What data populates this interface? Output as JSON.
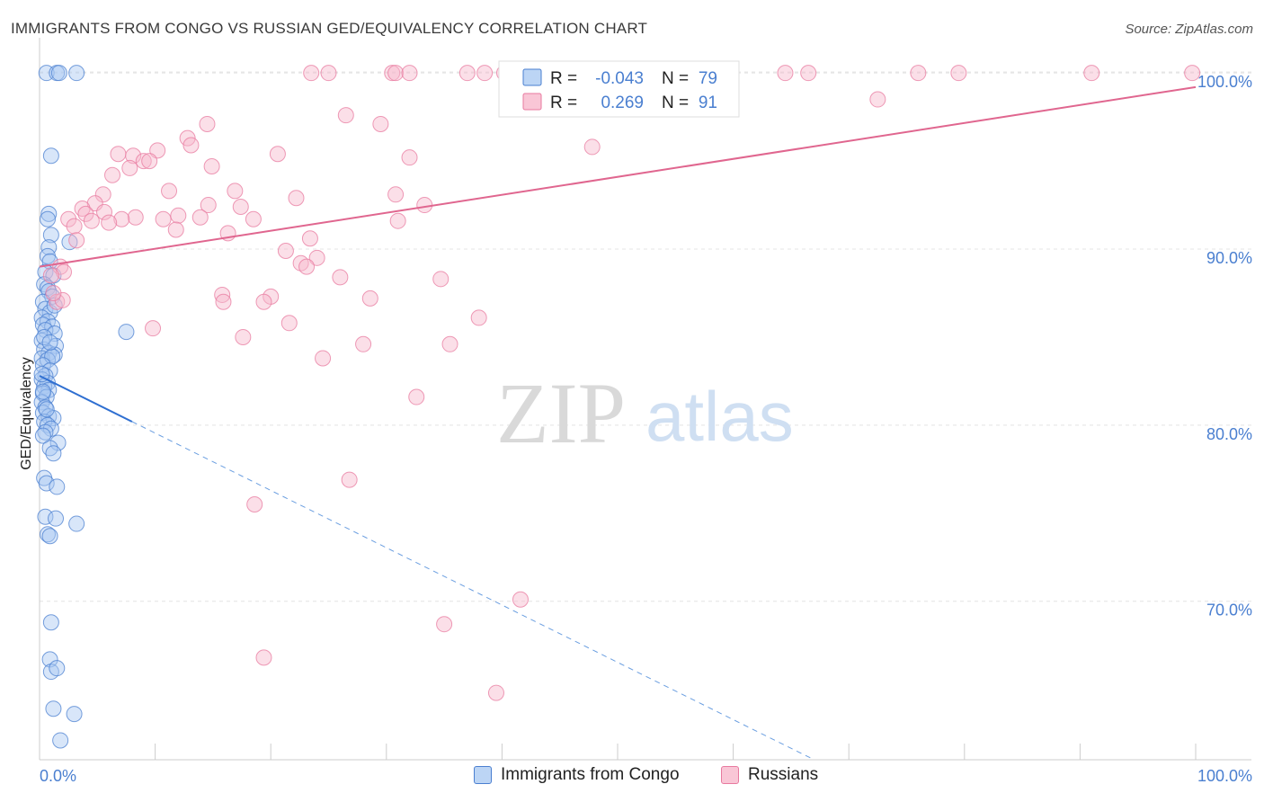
{
  "header": {
    "title": "IMMIGRANTS FROM CONGO VS RUSSIAN GED/EQUIVALENCY CORRELATION CHART",
    "source": "Source: ZipAtlas.com"
  },
  "watermark": {
    "zip": "ZIP",
    "atlas": "atlas"
  },
  "legend_top": {
    "rows": [
      {
        "r_label": "R =",
        "r_value": "-0.043",
        "n_label": "N =",
        "n_value": "79",
        "color": "#4a7fd0"
      },
      {
        "r_label": "R =",
        "r_value": "0.269",
        "n_label": "N =",
        "n_value": "91",
        "color": "#e8799f"
      }
    ]
  },
  "legend_bottom": {
    "items": [
      {
        "label": "Immigrants from Congo"
      },
      {
        "label": "Russians"
      }
    ]
  },
  "chart_data": {
    "type": "scatter",
    "xlabel": "",
    "ylabel": "GED/Equivalency",
    "xlim": [
      0,
      100
    ],
    "ylim": [
      61,
      102
    ],
    "x_tick_labels": [
      "0.0%",
      "100.0%"
    ],
    "y_ticks": [
      70,
      80,
      90,
      100
    ],
    "y_tick_labels": [
      "70.0%",
      "80.0%",
      "90.0%",
      "100.0%"
    ],
    "grid": true,
    "series": [
      {
        "name": "Immigrants from Congo",
        "color": "#4a7fd0",
        "fill": "#a9c8f2",
        "trend": {
          "x0": 0,
          "y0": 82.8,
          "x1": 8.0,
          "y1": 80.2,
          "dash_to_x": 67,
          "dash_to_y": 61
        },
        "points": [
          [
            0.6,
            100
          ],
          [
            1.5,
            100
          ],
          [
            1.7,
            100
          ],
          [
            3.2,
            100
          ],
          [
            1.0,
            95.3
          ],
          [
            0.8,
            92.0
          ],
          [
            0.7,
            91.7
          ],
          [
            1.0,
            90.8
          ],
          [
            2.6,
            90.4
          ],
          [
            0.8,
            90.1
          ],
          [
            0.7,
            89.6
          ],
          [
            0.9,
            89.3
          ],
          [
            0.5,
            88.7
          ],
          [
            1.2,
            88.5
          ],
          [
            0.4,
            88.0
          ],
          [
            0.7,
            87.8
          ],
          [
            0.8,
            87.6
          ],
          [
            1.1,
            87.3
          ],
          [
            0.3,
            87.0
          ],
          [
            0.5,
            86.6
          ],
          [
            0.9,
            86.4
          ],
          [
            0.2,
            86.1
          ],
          [
            0.7,
            85.9
          ],
          [
            0.3,
            85.7
          ],
          [
            1.1,
            85.6
          ],
          [
            0.5,
            85.4
          ],
          [
            1.3,
            85.2
          ],
          [
            7.5,
            85.3
          ],
          [
            0.2,
            84.8
          ],
          [
            1.4,
            84.5
          ],
          [
            0.4,
            84.3
          ],
          [
            0.8,
            84.1
          ],
          [
            1.3,
            84.0
          ],
          [
            0.2,
            83.8
          ],
          [
            0.7,
            83.7
          ],
          [
            1.1,
            83.9
          ],
          [
            0.3,
            83.4
          ],
          [
            0.9,
            83.1
          ],
          [
            0.5,
            82.8
          ],
          [
            0.2,
            82.6
          ],
          [
            0.7,
            82.4
          ],
          [
            0.4,
            82.2
          ],
          [
            0.8,
            82.0
          ],
          [
            0.3,
            81.8
          ],
          [
            0.6,
            81.6
          ],
          [
            0.2,
            81.3
          ],
          [
            0.5,
            81.0
          ],
          [
            0.3,
            80.7
          ],
          [
            0.8,
            80.5
          ],
          [
            1.2,
            80.4
          ],
          [
            0.4,
            80.2
          ],
          [
            0.7,
            80.0
          ],
          [
            1.0,
            79.8
          ],
          [
            0.5,
            79.6
          ],
          [
            0.3,
            79.4
          ],
          [
            1.6,
            79.0
          ],
          [
            0.9,
            78.7
          ],
          [
            1.2,
            78.4
          ],
          [
            0.4,
            77.0
          ],
          [
            0.6,
            76.7
          ],
          [
            1.5,
            76.5
          ],
          [
            0.5,
            74.8
          ],
          [
            1.4,
            74.7
          ],
          [
            3.2,
            74.4
          ],
          [
            0.7,
            73.8
          ],
          [
            0.9,
            73.7
          ],
          [
            1.0,
            68.8
          ],
          [
            0.9,
            66.7
          ],
          [
            1.0,
            66.0
          ],
          [
            1.5,
            66.2
          ],
          [
            1.2,
            63.9
          ],
          [
            3.0,
            63.6
          ],
          [
            1.8,
            62.1
          ],
          [
            0.3,
            81.9
          ],
          [
            0.6,
            80.9
          ],
          [
            0.4,
            85.0
          ],
          [
            0.2,
            82.9
          ],
          [
            1.3,
            86.8
          ],
          [
            0.9,
            84.7
          ]
        ]
      },
      {
        "name": "Russians",
        "color": "#e8799f",
        "fill": "#f6b8cb",
        "trend": {
          "x0": 0,
          "y0": 89.0,
          "x1": 100,
          "y1": 99.2
        },
        "points": [
          [
            23.5,
            100
          ],
          [
            25.0,
            100
          ],
          [
            30.5,
            100
          ],
          [
            30.8,
            100
          ],
          [
            32.0,
            100
          ],
          [
            37.0,
            100
          ],
          [
            38.5,
            100
          ],
          [
            47.5,
            100
          ],
          [
            59.0,
            100
          ],
          [
            64.5,
            100
          ],
          [
            66.5,
            100
          ],
          [
            76.0,
            100
          ],
          [
            79.5,
            100
          ],
          [
            91.0,
            100
          ],
          [
            99.7,
            100
          ],
          [
            72.5,
            98.5
          ],
          [
            26.5,
            97.6
          ],
          [
            29.5,
            97.1
          ],
          [
            14.5,
            97.1
          ],
          [
            12.8,
            96.3
          ],
          [
            13.1,
            95.9
          ],
          [
            47.8,
            95.8
          ],
          [
            20.6,
            95.4
          ],
          [
            6.8,
            95.4
          ],
          [
            8.1,
            95.3
          ],
          [
            32.0,
            95.2
          ],
          [
            10.2,
            95.6
          ],
          [
            9.0,
            95.0
          ],
          [
            9.5,
            95.0
          ],
          [
            7.8,
            94.6
          ],
          [
            14.9,
            94.7
          ],
          [
            6.3,
            94.2
          ],
          [
            11.2,
            93.3
          ],
          [
            16.9,
            93.3
          ],
          [
            5.5,
            93.1
          ],
          [
            22.2,
            92.9
          ],
          [
            30.8,
            93.1
          ],
          [
            4.8,
            92.6
          ],
          [
            3.7,
            92.3
          ],
          [
            14.6,
            92.5
          ],
          [
            17.4,
            92.4
          ],
          [
            4.0,
            92.0
          ],
          [
            5.6,
            92.1
          ],
          [
            33.3,
            92.5
          ],
          [
            12.0,
            91.9
          ],
          [
            13.9,
            91.8
          ],
          [
            8.3,
            91.8
          ],
          [
            10.7,
            91.7
          ],
          [
            2.5,
            91.7
          ],
          [
            7.1,
            91.7
          ],
          [
            4.5,
            91.6
          ],
          [
            18.5,
            91.7
          ],
          [
            31.0,
            91.6
          ],
          [
            3.0,
            91.3
          ],
          [
            11.8,
            91.1
          ],
          [
            16.3,
            90.9
          ],
          [
            23.4,
            90.6
          ],
          [
            21.3,
            89.9
          ],
          [
            24.0,
            89.5
          ],
          [
            22.6,
            89.2
          ],
          [
            23.1,
            89.0
          ],
          [
            1.8,
            89.0
          ],
          [
            2.1,
            88.7
          ],
          [
            26.0,
            88.4
          ],
          [
            34.7,
            88.3
          ],
          [
            15.8,
            87.4
          ],
          [
            20.0,
            87.3
          ],
          [
            28.6,
            87.2
          ],
          [
            1.5,
            87.0
          ],
          [
            2.0,
            87.1
          ],
          [
            15.9,
            87.0
          ],
          [
            19.4,
            87.0
          ],
          [
            38.0,
            86.1
          ],
          [
            21.6,
            85.8
          ],
          [
            9.8,
            85.5
          ],
          [
            17.6,
            85.0
          ],
          [
            28.0,
            84.6
          ],
          [
            35.5,
            84.6
          ],
          [
            24.5,
            83.8
          ],
          [
            32.6,
            81.6
          ],
          [
            26.8,
            76.9
          ],
          [
            18.6,
            75.5
          ],
          [
            41.6,
            70.1
          ],
          [
            35.0,
            68.7
          ],
          [
            19.4,
            66.8
          ],
          [
            39.5,
            64.8
          ],
          [
            1.0,
            88.5
          ],
          [
            3.2,
            90.5
          ],
          [
            6.0,
            91.5
          ],
          [
            40.2,
            100
          ],
          [
            1.2,
            87.5
          ]
        ]
      }
    ]
  }
}
